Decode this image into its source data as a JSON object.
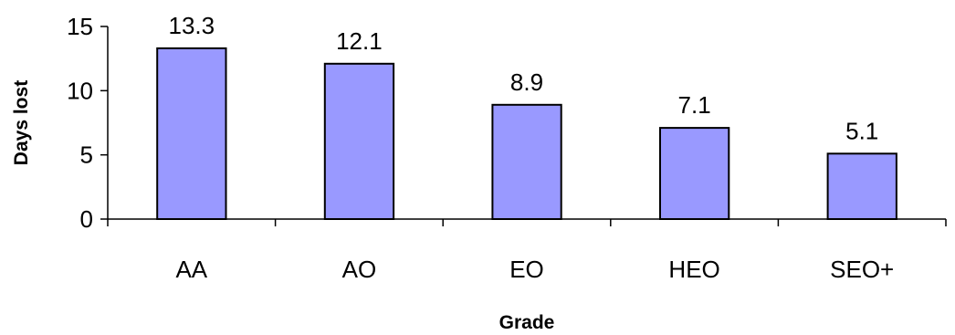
{
  "chart_data": {
    "type": "bar",
    "title": "",
    "xlabel": "Grade",
    "ylabel": "Days lost",
    "categories": [
      "AA",
      "AO",
      "EO",
      "HEO",
      "SEO+"
    ],
    "values": [
      13.3,
      12.1,
      8.9,
      7.1,
      5.1
    ],
    "data_labels": [
      "13.3",
      "12.1",
      "8.9",
      "7.1",
      "5.1"
    ],
    "ylim": [
      0,
      15
    ],
    "yticks": [
      0,
      5,
      10,
      15
    ],
    "ytick_labels": [
      "0",
      "5",
      "10",
      "15"
    ],
    "grid": false,
    "legend": "none",
    "colors": {
      "bar_fill": "#9999FF",
      "bar_stroke": "#000000",
      "axis": "#000000",
      "text": "#000000",
      "background": "#FFFFFF"
    }
  }
}
